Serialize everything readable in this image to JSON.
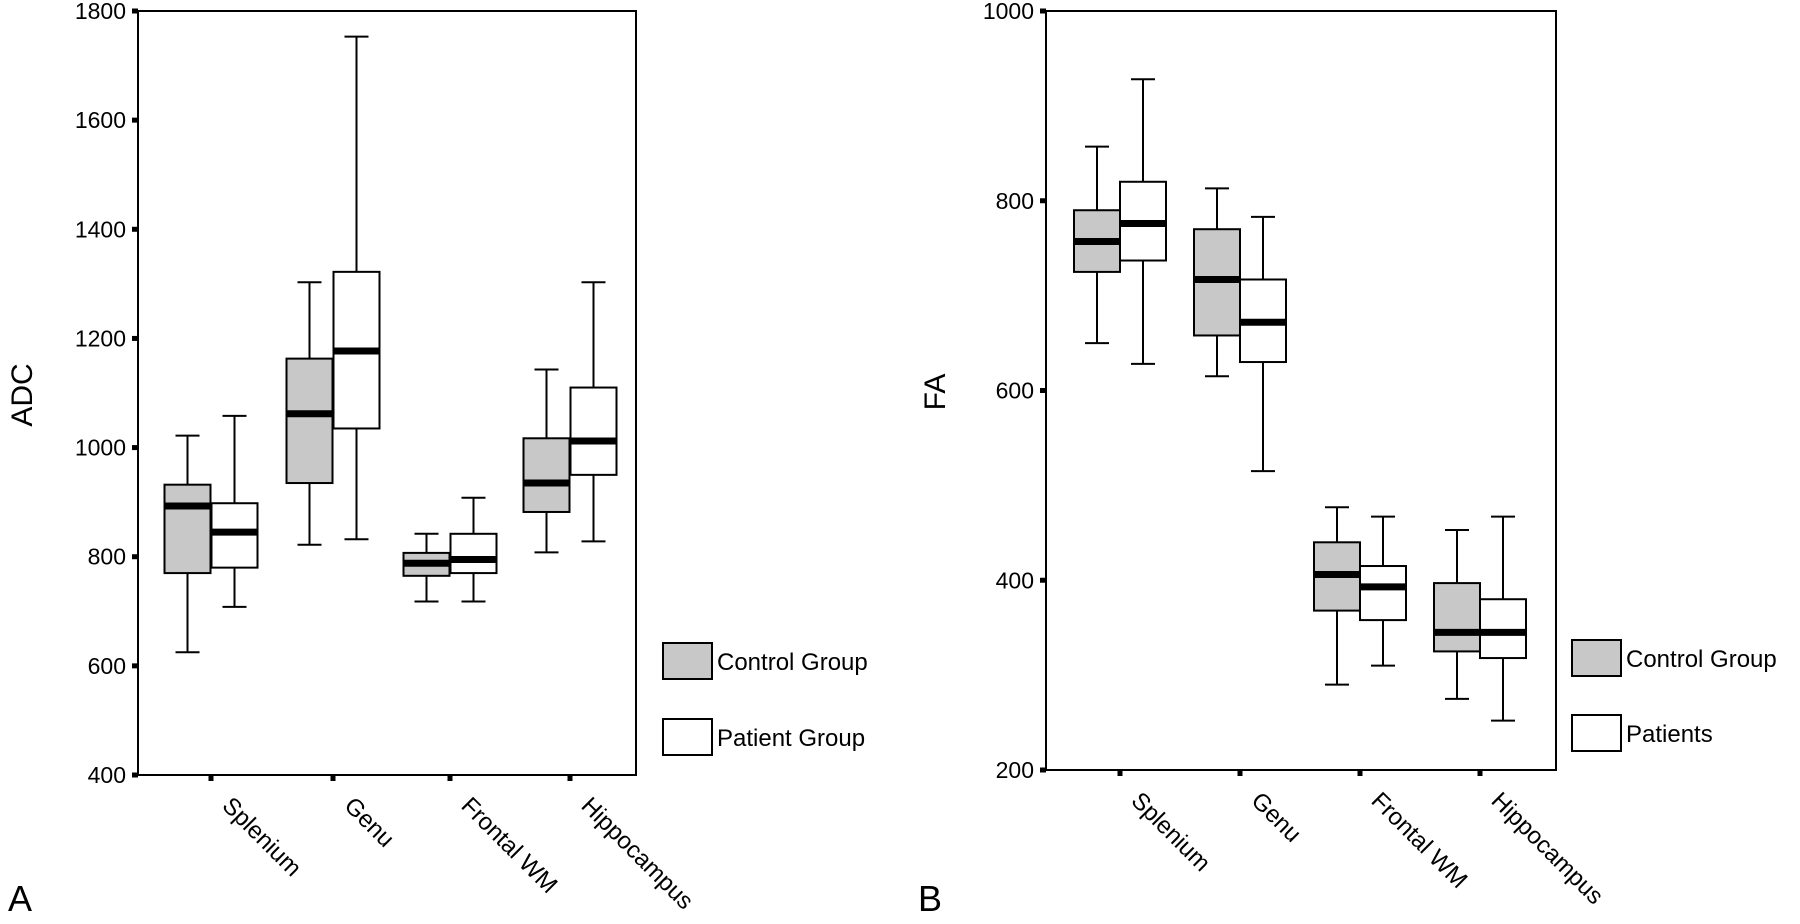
{
  "panel_labels": [
    "A",
    "B"
  ],
  "chart_data": [
    {
      "type": "boxplot",
      "title": "",
      "xlabel": "",
      "ylabel": "ADC",
      "ylim": [
        400,
        1800
      ],
      "yticks": [
        400,
        600,
        800,
        1000,
        1200,
        1400,
        1600,
        1800
      ],
      "categories": [
        "Splenium",
        "Genu",
        "Frontal WM",
        "Hippocampus"
      ],
      "grid": false,
      "legend_position": "bottom-right outside plot",
      "series": [
        {
          "name": "Control Group",
          "fill": "#c8c8c8",
          "boxes": [
            {
              "min": 625,
              "q1": 770,
              "median": 893,
              "q3": 932,
              "max": 1022
            },
            {
              "min": 822,
              "q1": 935,
              "median": 1062,
              "q3": 1163,
              "max": 1303
            },
            {
              "min": 718,
              "q1": 765,
              "median": 788,
              "q3": 807,
              "max": 842
            },
            {
              "min": 808,
              "q1": 882,
              "median": 935,
              "q3": 1017,
              "max": 1143
            }
          ]
        },
        {
          "name": "Patient Group",
          "fill": "#ffffff",
          "boxes": [
            {
              "min": 708,
              "q1": 780,
              "median": 845,
              "q3": 898,
              "max": 1058
            },
            {
              "min": 832,
              "q1": 1035,
              "median": 1177,
              "q3": 1322,
              "max": 1753
            },
            {
              "min": 718,
              "q1": 770,
              "median": 795,
              "q3": 842,
              "max": 908
            },
            {
              "min": 828,
              "q1": 950,
              "median": 1012,
              "q3": 1110,
              "max": 1303
            }
          ]
        }
      ]
    },
    {
      "type": "boxplot",
      "title": "",
      "xlabel": "",
      "ylabel": "FA",
      "ylim": [
        200,
        1000
      ],
      "yticks": [
        200,
        400,
        600,
        800,
        1000
      ],
      "categories": [
        "Splenium",
        "Genu",
        "Frontal WM",
        "Hippocampus"
      ],
      "grid": false,
      "legend_position": "bottom-right outside plot",
      "series": [
        {
          "name": "Control Group",
          "fill": "#c8c8c8",
          "boxes": [
            {
              "min": 650,
              "q1": 725,
              "median": 757,
              "q3": 790,
              "max": 857
            },
            {
              "min": 615,
              "q1": 658,
              "median": 717,
              "q3": 770,
              "max": 813
            },
            {
              "min": 290,
              "q1": 368,
              "median": 406,
              "q3": 440,
              "max": 477
            },
            {
              "min": 275,
              "q1": 325,
              "median": 345,
              "q3": 397,
              "max": 453
            }
          ]
        },
        {
          "name": "Patients",
          "fill": "#ffffff",
          "boxes": [
            {
              "min": 628,
              "q1": 737,
              "median": 776,
              "q3": 820,
              "max": 928
            },
            {
              "min": 515,
              "q1": 630,
              "median": 672,
              "q3": 717,
              "max": 783
            },
            {
              "min": 310,
              "q1": 358,
              "median": 393,
              "q3": 415,
              "max": 467
            },
            {
              "min": 252,
              "q1": 318,
              "median": 345,
              "q3": 380,
              "max": 467
            }
          ]
        }
      ]
    }
  ]
}
